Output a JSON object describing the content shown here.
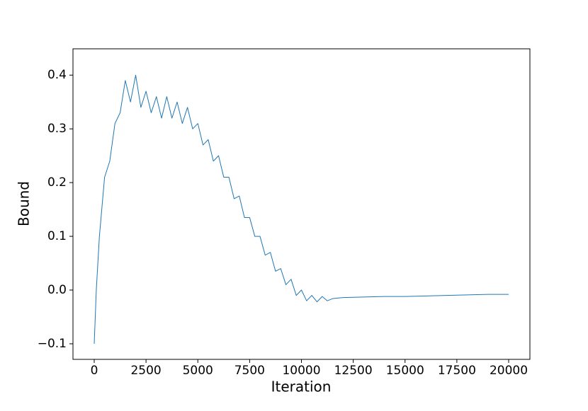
{
  "chart_data": {
    "type": "line",
    "x_label": "Iteration",
    "y_label": "Bound",
    "x": [
      0,
      100,
      250,
      500,
      750,
      1000,
      1250,
      1500,
      1750,
      2000,
      2250,
      2500,
      2750,
      3000,
      3250,
      3500,
      3750,
      4000,
      4250,
      4500,
      4750,
      5000,
      5250,
      5500,
      5750,
      6000,
      6250,
      6500,
      6750,
      7000,
      7250,
      7500,
      7750,
      8000,
      8250,
      8500,
      8750,
      9000,
      9250,
      9500,
      9750,
      10000,
      10250,
      10500,
      10750,
      11000,
      11250,
      11500,
      12000,
      13000,
      14000,
      15000,
      16000,
      17000,
      18000,
      19000,
      20000
    ],
    "series": [
      {
        "color": "#1f77b4",
        "values": [
          -0.1,
          0.0,
          0.1,
          0.21,
          0.24,
          0.31,
          0.33,
          0.39,
          0.35,
          0.4,
          0.34,
          0.37,
          0.33,
          0.36,
          0.32,
          0.36,
          0.32,
          0.35,
          0.31,
          0.34,
          0.3,
          0.31,
          0.27,
          0.28,
          0.24,
          0.25,
          0.21,
          0.21,
          0.17,
          0.175,
          0.135,
          0.135,
          0.1,
          0.1,
          0.065,
          0.07,
          0.035,
          0.04,
          0.01,
          0.02,
          -0.01,
          0.0,
          -0.02,
          -0.01,
          -0.022,
          -0.012,
          -0.02,
          -0.016,
          -0.014,
          -0.013,
          -0.012,
          -0.012,
          -0.011,
          -0.01,
          -0.009,
          -0.008,
          -0.008
        ]
      }
    ],
    "xlim": [
      -1026,
      21026
    ],
    "ylim": [
      -0.129,
      0.449
    ],
    "xticks": [
      0,
      2500,
      5000,
      7500,
      10000,
      12500,
      15000,
      17500,
      20000
    ],
    "yticks": [
      {
        "value": -0.1,
        "label": "−0.1"
      },
      {
        "value": 0,
        "label": "0.0"
      },
      0.1,
      0.2,
      0.3,
      0.4
    ],
    "grid": false
  }
}
